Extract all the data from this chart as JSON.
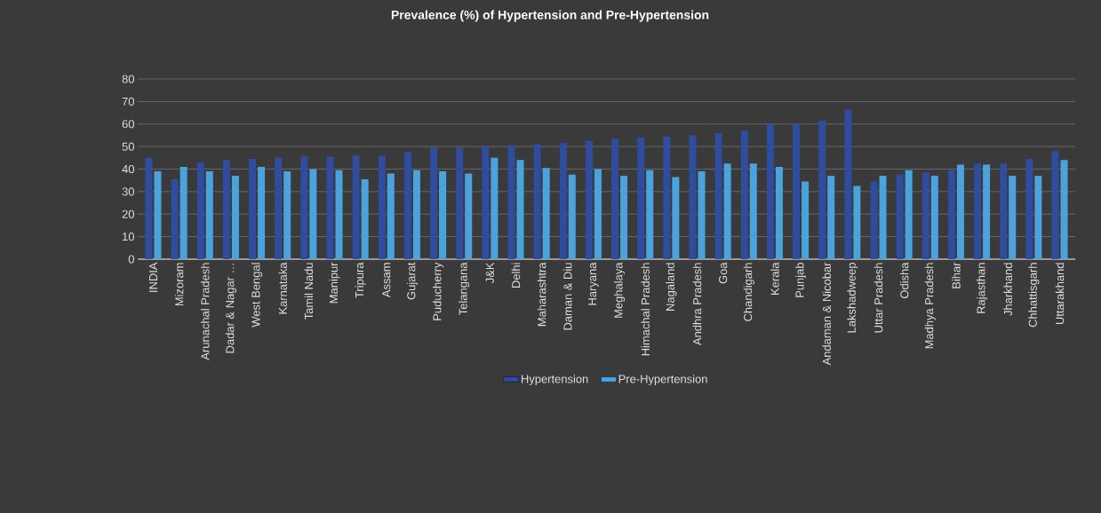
{
  "chart_data": {
    "type": "bar",
    "title": "Prevalence (%) of Hypertension and Pre-Hypertension",
    "categories": [
      "INDIA",
      "Mizoram",
      "Arunachal Pradesh",
      "Dadar & Nagar …",
      "West Bengal",
      "Karnataka",
      "Tamil Nadu",
      "Manipur",
      "Tripura",
      "Assam",
      "Gujarat",
      "Puducherry",
      "Telangana",
      "J&K",
      "Delhi",
      "Maharashtra",
      "Daman & Diu",
      "Haryana",
      "Meghalaya",
      "Himachal Pradesh",
      "Nagaland",
      "Andhra Pradesh",
      "Goa",
      "Chandigarh",
      "Kerala",
      "Punjab",
      "Andaman & Nicobar",
      "Lakshadweep",
      "Uttar Pradesh",
      "Odisha",
      "Madhya Pradesh",
      "Bihar",
      "Rajasthan",
      "Jharkhand",
      "Chhattisgarh",
      "Uttarakhand"
    ],
    "series": [
      {
        "name": "Hypertension",
        "color": "#2f4c9f",
        "values": [
          45,
          35.5,
          43,
          44,
          44.5,
          45,
          45.5,
          45.5,
          46,
          46,
          47.5,
          49.5,
          49.5,
          50,
          50.5,
          51,
          51.5,
          52.5,
          53.5,
          54,
          54.5,
          55,
          56,
          57,
          60,
          60,
          61.5,
          66.5,
          34.5,
          37.5,
          38.5,
          39.5,
          42.5,
          42.5,
          44.5,
          48
        ]
      },
      {
        "name": "Pre-Hypertension",
        "color": "#4ba3de",
        "values": [
          39,
          41,
          39,
          37,
          41,
          39,
          40,
          39.5,
          35.5,
          38,
          39.5,
          39,
          38,
          45,
          44,
          40.5,
          37.5,
          40,
          37,
          39.5,
          36.5,
          39,
          42.5,
          42.5,
          41,
          34.5,
          37,
          32.5,
          37,
          39.5,
          37,
          42,
          42,
          37,
          37,
          44
        ]
      }
    ],
    "ylim": [
      0,
      80
    ],
    "yticks": [
      0,
      10,
      20,
      30,
      40,
      50,
      60,
      70,
      80
    ],
    "grid": "y",
    "legend": "bottom"
  }
}
